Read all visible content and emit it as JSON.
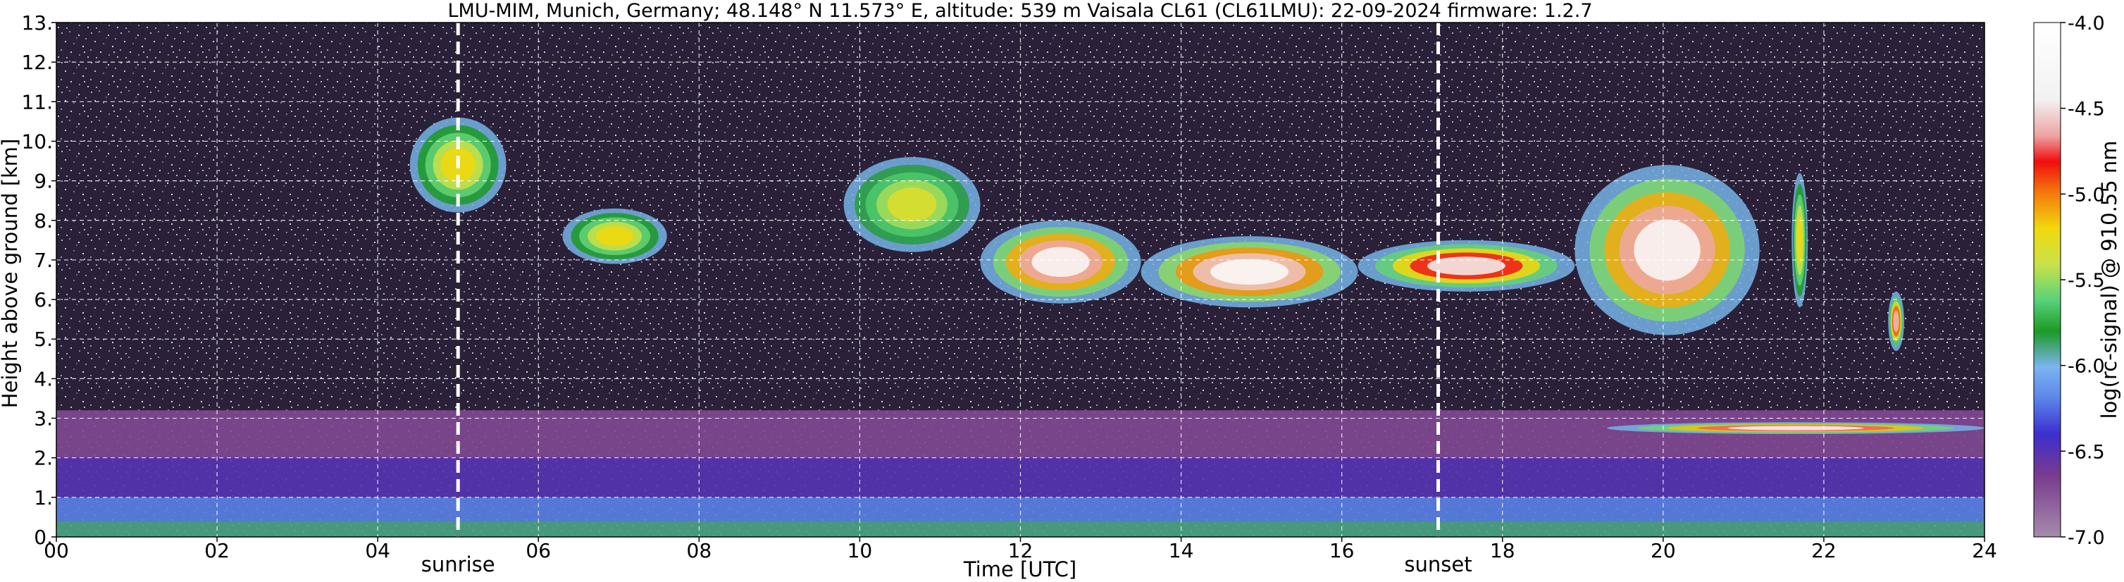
{
  "chart_data": {
    "type": "heatmap",
    "title": "LMU-MIM, Munich, Germany; 48.148° N 11.573° E, altitude: 539 m    Vaisala CL61 (CL61LMU): 22-09-2024    firmware: 1.2.7",
    "xlabel": "Time [UTC]",
    "ylabel": "Height above ground [km]",
    "xlim": [
      0,
      24
    ],
    "ylim": [
      0,
      13
    ],
    "x_ticks": [
      "00",
      "02",
      "04",
      "06",
      "08",
      "10",
      "12",
      "14",
      "16",
      "18",
      "20",
      "22",
      "24"
    ],
    "y_ticks": [
      "0.",
      "1.",
      "2.",
      "3.",
      "4.",
      "5.",
      "6.",
      "7.",
      "8.",
      "9.",
      "10.",
      "11.",
      "12.",
      "13."
    ],
    "grid": true,
    "events": [
      {
        "label": "sunrise",
        "time_h": 5.0
      },
      {
        "label": "sunset",
        "time_h": 17.2
      }
    ],
    "colorbar": {
      "label": "log(rc-signal) @ 910.55 nm",
      "range": [
        -7.0,
        -4.0
      ],
      "ticks": [
        "-4.0",
        "-4.5",
        "-5.0",
        "-5.5",
        "-6.0",
        "-6.5",
        "-7.0"
      ]
    },
    "layers": [
      {
        "name": "surface aerosol",
        "t": [
          0,
          24
        ],
        "h": [
          0.0,
          0.4
        ],
        "level": -5.9
      },
      {
        "name": "boundary layer",
        "t": [
          0,
          24
        ],
        "h": [
          0.4,
          1.0
        ],
        "level": -6.2
      },
      {
        "name": "residual layer",
        "t": [
          0,
          24
        ],
        "h": [
          1.0,
          2.0
        ],
        "level": -6.5
      },
      {
        "name": "upper aerosol",
        "t": [
          0,
          24
        ],
        "h": [
          2.0,
          3.2
        ],
        "level": -6.7
      }
    ],
    "cloud_features": [
      {
        "t": [
          4.4,
          5.6
        ],
        "h": [
          8.2,
          10.6
        ],
        "peak": -5.2
      },
      {
        "t": [
          6.3,
          7.6
        ],
        "h": [
          6.9,
          8.3
        ],
        "peak": -5.2
      },
      {
        "t": [
          9.8,
          11.5
        ],
        "h": [
          7.2,
          9.6
        ],
        "peak": -5.3
      },
      {
        "t": [
          11.5,
          13.5
        ],
        "h": [
          5.9,
          8.0
        ],
        "peak": -4.2
      },
      {
        "t": [
          13.5,
          16.2
        ],
        "h": [
          5.8,
          7.6
        ],
        "peak": -4.1
      },
      {
        "t": [
          16.2,
          18.9
        ],
        "h": [
          6.2,
          7.5
        ],
        "peak": -4.4
      },
      {
        "t": [
          18.9,
          21.2
        ],
        "h": [
          5.1,
          9.4
        ],
        "peak": -4.2
      },
      {
        "t": [
          21.6,
          21.8
        ],
        "h": [
          5.8,
          9.2
        ],
        "peak": -5.2
      },
      {
        "t": [
          22.8,
          23.0
        ],
        "h": [
          4.7,
          6.2
        ],
        "peak": -4.6
      },
      {
        "t": [
          19.3,
          24.0
        ],
        "h": [
          2.6,
          2.9
        ],
        "peak": -4.3
      }
    ]
  }
}
